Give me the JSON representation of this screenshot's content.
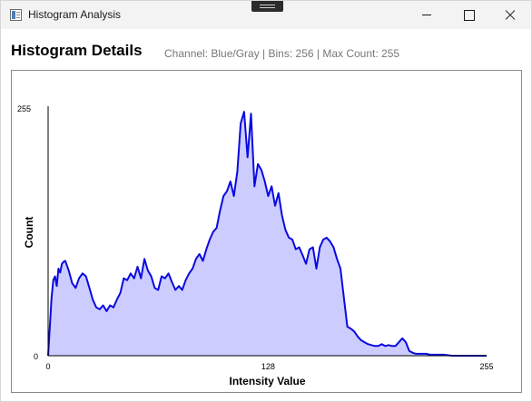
{
  "window": {
    "title": "Histogram Analysis"
  },
  "header": {
    "title": "Histogram Details",
    "info": "Channel: Blue/Gray | Bins: 256 | Max Count: 255"
  },
  "colors": {
    "line": "#0a0ae0",
    "fill": "#ccccff",
    "axis": "#000000"
  },
  "chart_data": {
    "type": "area",
    "xlabel": "Intensity Value",
    "ylabel": "Count",
    "xlim": [
      0,
      255
    ],
    "ylim": [
      0,
      255
    ],
    "x_ticks": [
      "0",
      "128",
      "255"
    ],
    "y_ticks": [
      "0",
      "255"
    ],
    "grid": false,
    "legend": "none",
    "x": [
      0,
      1,
      2,
      3,
      4,
      5,
      6,
      7,
      8,
      9,
      10,
      12,
      14,
      16,
      18,
      20,
      22,
      24,
      26,
      28,
      30,
      32,
      34,
      36,
      38,
      40,
      42,
      44,
      46,
      48,
      50,
      52,
      54,
      56,
      58,
      60,
      62,
      64,
      66,
      68,
      70,
      72,
      74,
      76,
      78,
      80,
      82,
      84,
      86,
      88,
      90,
      92,
      94,
      96,
      98,
      100,
      102,
      104,
      106,
      108,
      110,
      112,
      114,
      116,
      118,
      120,
      122,
      124,
      126,
      128,
      130,
      132,
      134,
      136,
      138,
      140,
      142,
      144,
      146,
      148,
      150,
      152,
      154,
      156,
      158,
      160,
      162,
      164,
      166,
      168,
      170,
      172,
      174,
      176,
      178,
      180,
      182,
      184,
      186,
      188,
      190,
      192,
      194,
      196,
      198,
      200,
      202,
      204,
      206,
      208,
      210,
      212,
      214,
      216,
      218,
      220,
      222,
      224,
      226,
      228,
      230,
      235,
      240,
      245,
      255
    ],
    "values": [
      0,
      30,
      60,
      78,
      82,
      72,
      90,
      86,
      95,
      97,
      98,
      88,
      75,
      70,
      80,
      85,
      82,
      70,
      58,
      50,
      48,
      52,
      46,
      52,
      50,
      58,
      65,
      80,
      78,
      85,
      80,
      92,
      80,
      100,
      88,
      82,
      70,
      68,
      82,
      80,
      85,
      76,
      68,
      72,
      68,
      78,
      85,
      90,
      100,
      105,
      98,
      110,
      120,
      128,
      132,
      150,
      165,
      170,
      180,
      165,
      190,
      240,
      252,
      205,
      250,
      175,
      198,
      192,
      180,
      165,
      175,
      155,
      168,
      145,
      130,
      122,
      120,
      110,
      112,
      104,
      95,
      110,
      112,
      90,
      112,
      120,
      122,
      118,
      112,
      100,
      90,
      60,
      30,
      28,
      25,
      20,
      16,
      14,
      12,
      11,
      10,
      10,
      12,
      10,
      11,
      10,
      10,
      14,
      18,
      14,
      5,
      3,
      2,
      2,
      2,
      2,
      1,
      1,
      1,
      1,
      1,
      0,
      0,
      0,
      0
    ]
  }
}
